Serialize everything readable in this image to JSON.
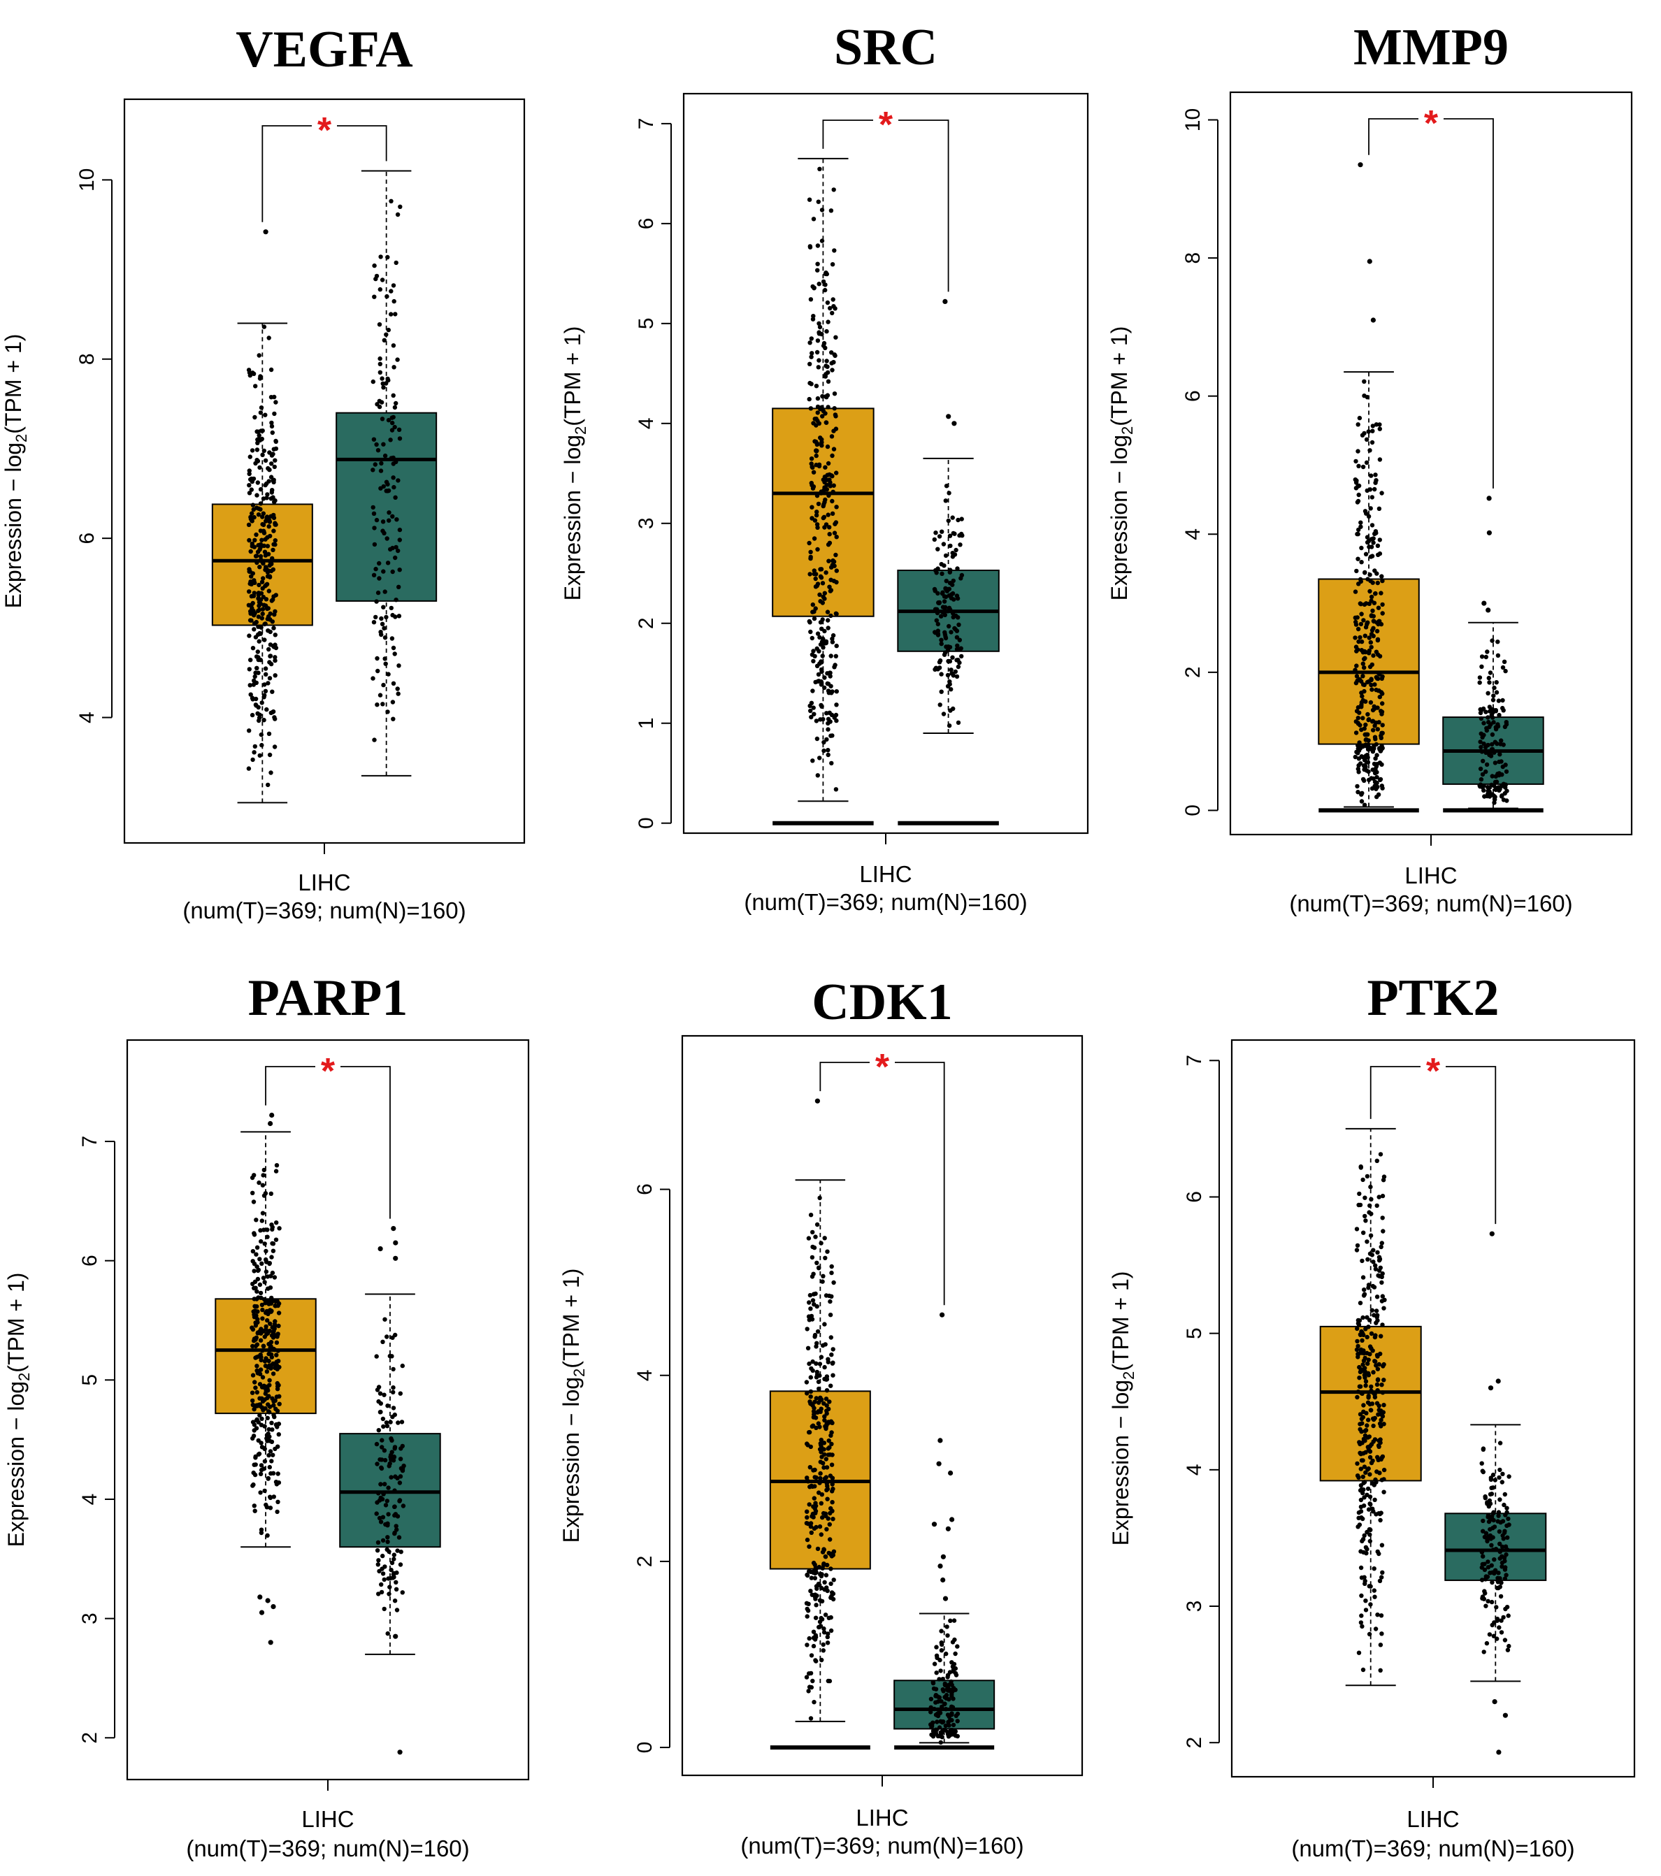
{
  "figure": {
    "colors": {
      "tumor": "#DC9F16",
      "normal": "#2A6B60",
      "star": "#E31A1C",
      "axis": "#000000"
    }
  },
  "chart_data": [
    {
      "type": "box",
      "title": "VEGFA",
      "ylabel": {
        "main": "Expression − log",
        "sub": "2",
        "tail": "(TPM + 1)"
      },
      "xlabel": {
        "line1": "LIHC",
        "line2": "(num(T)=369; num(N)=160)"
      },
      "ylim": [
        2.6,
        10.9
      ],
      "yticks": [
        "4",
        "6",
        "8",
        "10"
      ],
      "significance": "*",
      "groups": [
        {
          "group": "T",
          "n": 369,
          "color": "#DC9F16",
          "whisker_low": 3.05,
          "q1": 5.03,
          "median": 5.75,
          "q3": 6.38,
          "whisker_high": 8.4,
          "outliers": [
            9.42
          ]
        },
        {
          "group": "N",
          "n": 160,
          "color": "#2A6B60",
          "whisker_low": 3.35,
          "q1": 5.3,
          "median": 6.88,
          "q3": 7.4,
          "whisker_high": 10.1,
          "outliers": []
        }
      ]
    },
    {
      "type": "box",
      "title": "SRC",
      "ylabel": {
        "main": "Expression − log",
        "sub": "2",
        "tail": "(TPM + 1)"
      },
      "xlabel": {
        "line1": "LIHC",
        "line2": "(num(T)=369; num(N)=160)"
      },
      "ylim": [
        -0.1,
        7.3
      ],
      "yticks": [
        "0",
        "1",
        "2",
        "3",
        "4",
        "5",
        "6",
        "7"
      ],
      "significance": "*",
      "groups": [
        {
          "group": "T",
          "n": 369,
          "color": "#DC9F16",
          "whisker_low": 0.22,
          "q1": 2.07,
          "median": 3.3,
          "q3": 4.15,
          "whisker_high": 6.65,
          "zero_band": true,
          "outliers": []
        },
        {
          "group": "N",
          "n": 160,
          "color": "#2A6B60",
          "whisker_low": 0.9,
          "q1": 1.72,
          "median": 2.12,
          "q3": 2.53,
          "whisker_high": 3.65,
          "zero_band": true,
          "outliers": [
            4.0,
            4.07,
            5.22
          ]
        }
      ]
    },
    {
      "type": "box",
      "title": "MMP9",
      "ylabel": {
        "main": "Expression − log",
        "sub": "2",
        "tail": "(TPM + 1)"
      },
      "xlabel": {
        "line1": "LIHC",
        "line2": "(num(T)=369; num(N)=160)"
      },
      "ylim": [
        -0.35,
        10.4
      ],
      "yticks": [
        "0",
        "2",
        "4",
        "6",
        "8",
        "10"
      ],
      "significance": "*",
      "groups": [
        {
          "group": "T",
          "n": 369,
          "color": "#DC9F16",
          "whisker_low": 0.05,
          "q1": 0.96,
          "median": 2.0,
          "q3": 3.35,
          "whisker_high": 6.35,
          "zero_band": true,
          "outliers": [
            7.1,
            7.95,
            9.35
          ]
        },
        {
          "group": "N",
          "n": 160,
          "color": "#2A6B60",
          "whisker_low": 0.03,
          "q1": 0.38,
          "median": 0.86,
          "q3": 1.35,
          "whisker_high": 2.72,
          "zero_band": true,
          "outliers": [
            2.9,
            3.0,
            4.02,
            4.52
          ]
        }
      ]
    },
    {
      "type": "box",
      "title": "PARP1",
      "ylabel": {
        "main": "Expression − log",
        "sub": "2",
        "tail": "(TPM + 1)"
      },
      "xlabel": {
        "line1": "LIHC",
        "line2": "(num(T)=369; num(N)=160)"
      },
      "ylim": [
        1.65,
        7.85
      ],
      "yticks": [
        "2",
        "3",
        "4",
        "5",
        "6",
        "7"
      ],
      "significance": "*",
      "groups": [
        {
          "group": "T",
          "n": 369,
          "color": "#DC9F16",
          "whisker_low": 3.6,
          "q1": 4.72,
          "median": 5.25,
          "q3": 5.68,
          "whisker_high": 7.08,
          "outliers": [
            2.8,
            3.05,
            3.1,
            3.15,
            3.18,
            7.15,
            7.22
          ]
        },
        {
          "group": "N",
          "n": 160,
          "color": "#2A6B60",
          "whisker_low": 2.7,
          "q1": 3.6,
          "median": 4.06,
          "q3": 4.55,
          "whisker_high": 5.72,
          "outliers": [
            1.88,
            2.85,
            6.02,
            6.1,
            6.15,
            6.27
          ]
        }
      ]
    },
    {
      "type": "box",
      "title": "CDK1",
      "ylabel": {
        "main": "Expression − log",
        "sub": "2",
        "tail": "(TPM + 1)"
      },
      "xlabel": {
        "line1": "LIHC",
        "line2": "(num(T)=369; num(N)=160)"
      },
      "ylim": [
        -0.3,
        7.65
      ],
      "yticks": [
        "0",
        "2",
        "4",
        "6"
      ],
      "significance": "*",
      "groups": [
        {
          "group": "T",
          "n": 369,
          "color": "#DC9F16",
          "whisker_low": 0.28,
          "q1": 1.92,
          "median": 2.86,
          "q3": 3.83,
          "whisker_high": 6.1,
          "zero_band": true,
          "outliers": [
            6.95
          ]
        },
        {
          "group": "N",
          "n": 160,
          "color": "#2A6B60",
          "whisker_low": 0.05,
          "q1": 0.2,
          "median": 0.41,
          "q3": 0.72,
          "whisker_high": 1.44,
          "zero_band": true,
          "outliers": [
            1.6,
            1.8,
            1.95,
            2.05,
            2.35,
            2.4,
            2.45,
            2.95,
            3.05,
            3.3,
            4.65
          ]
        }
      ]
    },
    {
      "type": "box",
      "title": "PTK2",
      "ylabel": {
        "main": "Expression − log",
        "sub": "2",
        "tail": "(TPM + 1)"
      },
      "xlabel": {
        "line1": "LIHC",
        "line2": "(num(T)=369; num(N)=160)"
      },
      "ylim": [
        1.75,
        7.15
      ],
      "yticks": [
        "2",
        "3",
        "4",
        "5",
        "6",
        "7"
      ],
      "significance": "*",
      "groups": [
        {
          "group": "T",
          "n": 369,
          "color": "#DC9F16",
          "whisker_low": 2.42,
          "q1": 3.92,
          "median": 4.57,
          "q3": 5.05,
          "whisker_high": 6.5,
          "outliers": []
        },
        {
          "group": "N",
          "n": 160,
          "color": "#2A6B60",
          "whisker_low": 2.45,
          "q1": 3.19,
          "median": 3.41,
          "q3": 3.68,
          "whisker_high": 4.33,
          "outliers": [
            1.93,
            2.2,
            2.3,
            4.6,
            4.65,
            5.73
          ]
        }
      ]
    }
  ]
}
